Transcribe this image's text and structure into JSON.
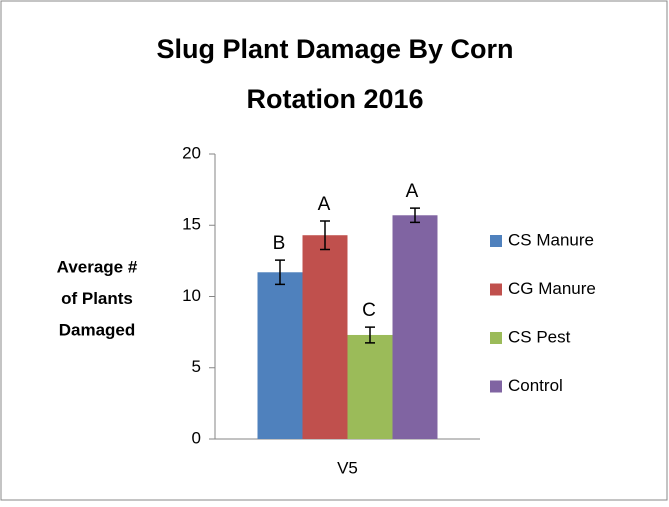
{
  "chart_data": {
    "type": "bar",
    "title": [
      "Slug Plant Damage By Corn",
      "Rotation 2016"
    ],
    "y_label": [
      "Average #",
      "of Plants",
      "Damaged"
    ],
    "categories": [
      "V5"
    ],
    "series": [
      {
        "name": "CS Manure",
        "color": "#4f81bd",
        "values": [
          11.7
        ],
        "errors": [
          0.85
        ],
        "annotations": [
          "B"
        ]
      },
      {
        "name": "CG Manure",
        "color": "#c0504d",
        "values": [
          14.3
        ],
        "errors": [
          1.0
        ],
        "annotations": [
          "A"
        ]
      },
      {
        "name": "CS Pest",
        "color": "#9bbb59",
        "values": [
          7.3
        ],
        "errors": [
          0.55
        ],
        "annotations": [
          "C"
        ]
      },
      {
        "name": "Control",
        "color": "#8064a2",
        "values": [
          15.7
        ],
        "errors": [
          0.5
        ],
        "annotations": [
          "A"
        ]
      }
    ],
    "ylim": [
      0,
      20
    ],
    "yticks": [
      0,
      5,
      10,
      15,
      20
    ],
    "grid": false,
    "legend": "right"
  }
}
